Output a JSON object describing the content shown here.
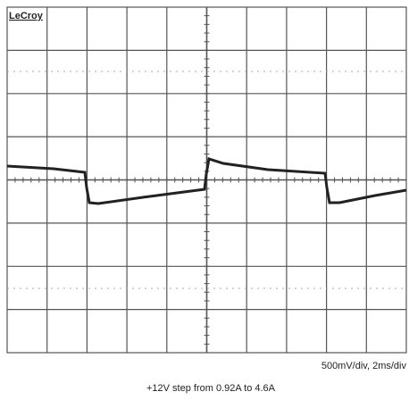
{
  "brand": "LeCroy",
  "scale": "500mV/div, 2ms/div",
  "caption": "+12V step from 0.92A to 4.6A"
}
